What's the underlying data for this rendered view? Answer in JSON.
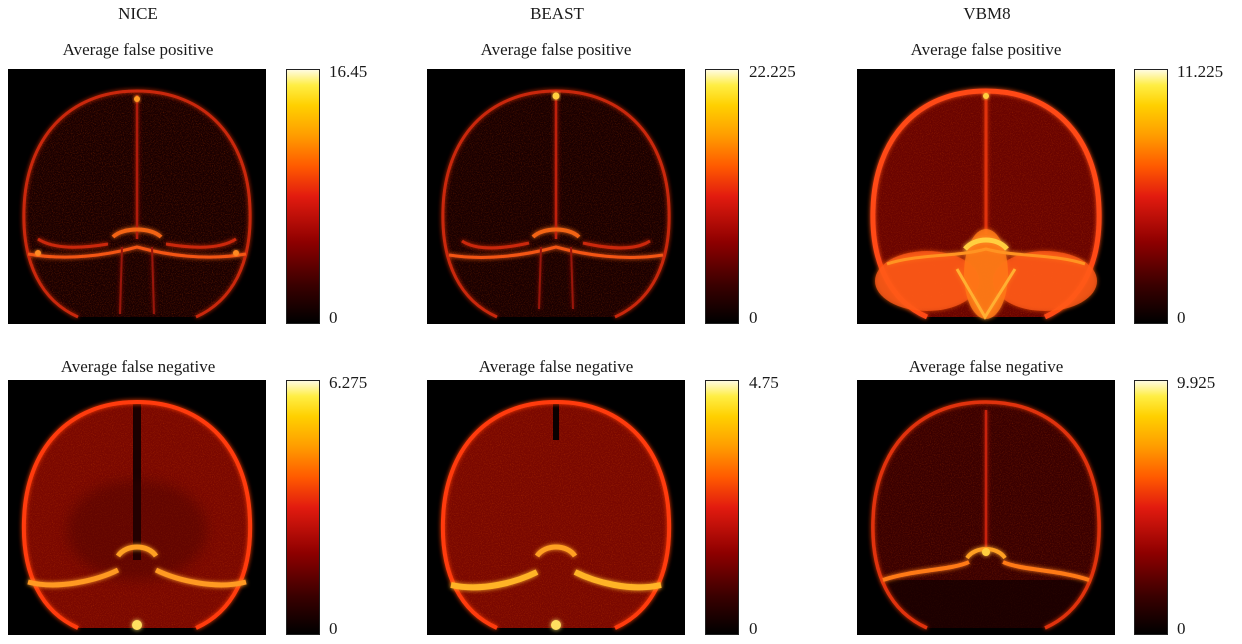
{
  "columns": [
    {
      "title": "NICE",
      "top": {
        "label": "Average false positive",
        "max": "16.45",
        "min": "0"
      },
      "bottom": {
        "label": "Average false negative",
        "max": "6.275",
        "min": "0"
      }
    },
    {
      "title": "BEAST",
      "top": {
        "label": "Average false positive",
        "max": "22.225",
        "min": "0"
      },
      "bottom": {
        "label": "Average false negative",
        "max": "4.75",
        "min": "0"
      }
    },
    {
      "title": "VBM8",
      "top": {
        "label": "Average false positive",
        "max": "11.225",
        "min": "0"
      },
      "bottom": {
        "label": "Average false negative",
        "max": "9.925",
        "min": "0"
      }
    }
  ],
  "colormap": "hot"
}
